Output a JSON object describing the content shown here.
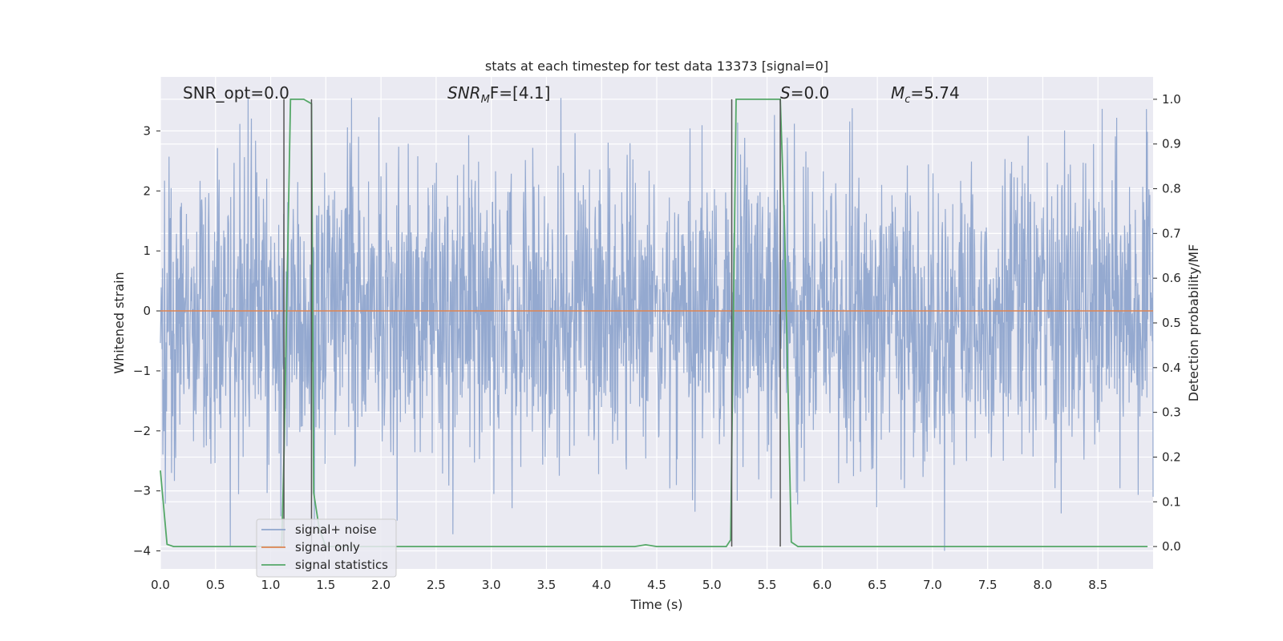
{
  "chart_data": {
    "type": "line",
    "title": "stats at each timestep for test data 13373 [signal=0]",
    "xlabel": "Time (s)",
    "ylabel": "Whitened strain",
    "y2label": "Detection probability/MF",
    "xlim": [
      0.0,
      9.0
    ],
    "ylim": [
      -4.3,
      3.9
    ],
    "y2lim": [
      -0.05,
      1.05
    ],
    "xticks": [
      "0.0",
      "0.5",
      "1.0",
      "1.5",
      "2.0",
      "2.5",
      "3.0",
      "3.5",
      "4.0",
      "4.5",
      "5.0",
      "5.5",
      "6.0",
      "6.5",
      "7.0",
      "7.5",
      "8.0",
      "8.5"
    ],
    "yticks": [
      "3",
      "2",
      "1",
      "0",
      "−1",
      "−2",
      "−3",
      "−4"
    ],
    "y2ticks": [
      "1.0",
      "0.9",
      "0.8",
      "0.7",
      "0.6",
      "0.5",
      "0.4",
      "0.3",
      "0.2",
      "0.1",
      "0.0"
    ],
    "grid": true,
    "annotations": {
      "snr_opt": "SNR_opt=0.0",
      "snr_mf_base": "SNR",
      "snr_mf_sub": "M",
      "snr_mf_tail": "F=[4.1]",
      "s": "S",
      "s_val": "=0.0",
      "mc": "M",
      "mc_sub": "c",
      "mc_val": "=5.74"
    },
    "legend": {
      "placement": "lower-left",
      "entries": [
        "signal+ noise",
        "signal only",
        "signal statistics"
      ]
    },
    "colors": {
      "noise": "#8fa5ce",
      "signal": "#dd8452",
      "stats": "#55a868",
      "vline": "#555555",
      "background": "#eaeaf2",
      "grid": "#ffffff"
    },
    "series": [
      {
        "name": "signal+ noise",
        "axis": "left",
        "noise_envelope": {
          "x": [
            0.0,
            9.0
          ],
          "typical_amplitude": 2.0,
          "max_amplitude": 3.55,
          "min_amplitude": -4.0
        }
      },
      {
        "name": "signal only",
        "axis": "left",
        "x": [
          0.0,
          9.0
        ],
        "y": [
          0.0,
          0.0
        ]
      },
      {
        "name": "signal statistics",
        "axis": "right",
        "x": [
          0.0,
          0.06,
          0.12,
          1.1,
          1.12,
          1.18,
          1.3,
          1.37,
          1.39,
          1.44,
          1.5,
          4.3,
          4.4,
          4.5,
          5.13,
          5.17,
          5.22,
          5.62,
          5.66,
          5.72,
          5.78,
          8.95
        ],
        "y": [
          0.17,
          0.005,
          0.0,
          0.0,
          0.2,
          1.0,
          1.0,
          0.99,
          0.12,
          0.04,
          0.0,
          0.0,
          0.004,
          0.0,
          0.0,
          0.015,
          1.0,
          1.0,
          0.7,
          0.01,
          0.0,
          0.0
        ]
      }
    ],
    "vertical_lines_x": [
      1.12,
      1.37,
      5.18,
      5.62
    ]
  }
}
